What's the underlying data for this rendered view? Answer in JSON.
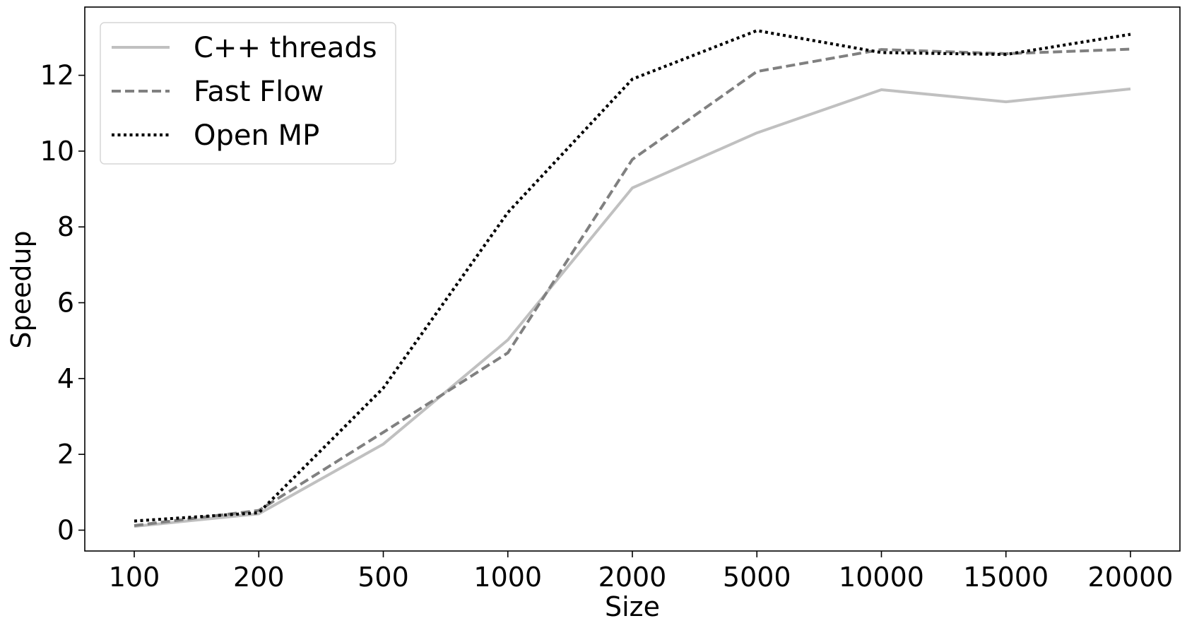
{
  "chart_data": {
    "type": "line",
    "title": "",
    "xlabel": "Size",
    "ylabel": "Speedup",
    "categories": [
      "100",
      "200",
      "500",
      "1000",
      "2000",
      "5000",
      "10000",
      "15000",
      "20000"
    ],
    "ylim": [
      -0.55,
      13.8
    ],
    "yticks": [
      0,
      2,
      4,
      6,
      8,
      10,
      12
    ],
    "grid": false,
    "legend_position": "top-left",
    "series": [
      {
        "name": "C++ threads",
        "values": [
          0.1,
          0.43,
          2.27,
          5.02,
          9.03,
          10.48,
          11.62,
          11.3,
          11.64
        ],
        "color": "#c0c0c0",
        "linestyle": "solid"
      },
      {
        "name": "Fast Flow",
        "values": [
          0.12,
          0.52,
          2.58,
          4.68,
          9.78,
          12.1,
          12.68,
          12.57,
          12.69
        ],
        "color": "#808080",
        "linestyle": "dashed"
      },
      {
        "name": "Open MP",
        "values": [
          0.24,
          0.46,
          3.75,
          8.38,
          11.9,
          13.18,
          12.6,
          12.55,
          13.08
        ],
        "color": "#000000",
        "linestyle": "dotted"
      }
    ]
  }
}
